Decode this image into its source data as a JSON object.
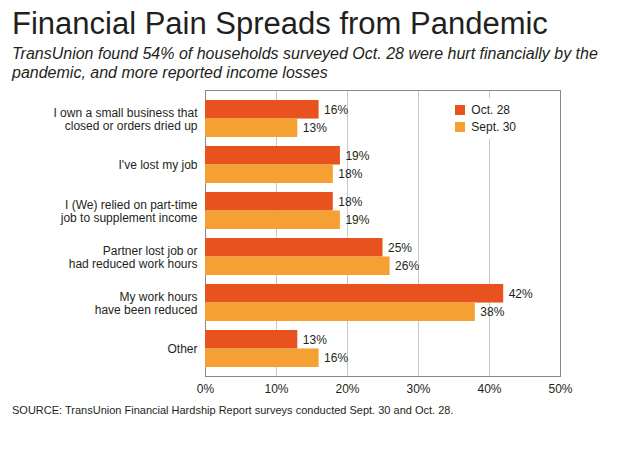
{
  "chart_data": {
    "type": "bar",
    "orientation": "horizontal",
    "title": "Financial Pain Spreads from Pandemic",
    "subtitle": "TransUnion found 54% of households surveyed Oct. 28 were hurt financially by the pandemic, and more reported income losses",
    "source": "SOURCE: TransUnion Financial Hardship Report surveys conducted Sept. 30 and Oct. 28.",
    "categories": [
      "I own a small business that\nclosed or orders dried up",
      "I've lost my job",
      "I (We) relied on part-time\njob to supplement income",
      "Partner lost job or\nhad reduced work hours",
      "My work hours\nhave been reduced",
      "Other"
    ],
    "series": [
      {
        "name": "Oct. 28",
        "color": "#e8521e",
        "values": [
          16,
          19,
          18,
          25,
          42,
          13
        ],
        "value_labels": [
          "16%",
          "19%",
          "18%",
          "25%",
          "42%",
          "13%"
        ]
      },
      {
        "name": "Sept. 30",
        "color": "#f5a033",
        "values": [
          13,
          18,
          19,
          26,
          38,
          16
        ],
        "value_labels": [
          "13%",
          "18%",
          "19%",
          "26%",
          "38%",
          "16%"
        ]
      }
    ],
    "xlim": [
      0,
      50
    ],
    "xticks": [
      {
        "value": 0,
        "label": "0%"
      },
      {
        "value": 10,
        "label": "10%"
      },
      {
        "value": 20,
        "label": "20%"
      },
      {
        "value": 30,
        "label": "30%"
      },
      {
        "value": 40,
        "label": "40%"
      },
      {
        "value": 50,
        "label": "50%"
      }
    ],
    "grid": true,
    "legend": "upper right",
    "data_labels": true
  }
}
